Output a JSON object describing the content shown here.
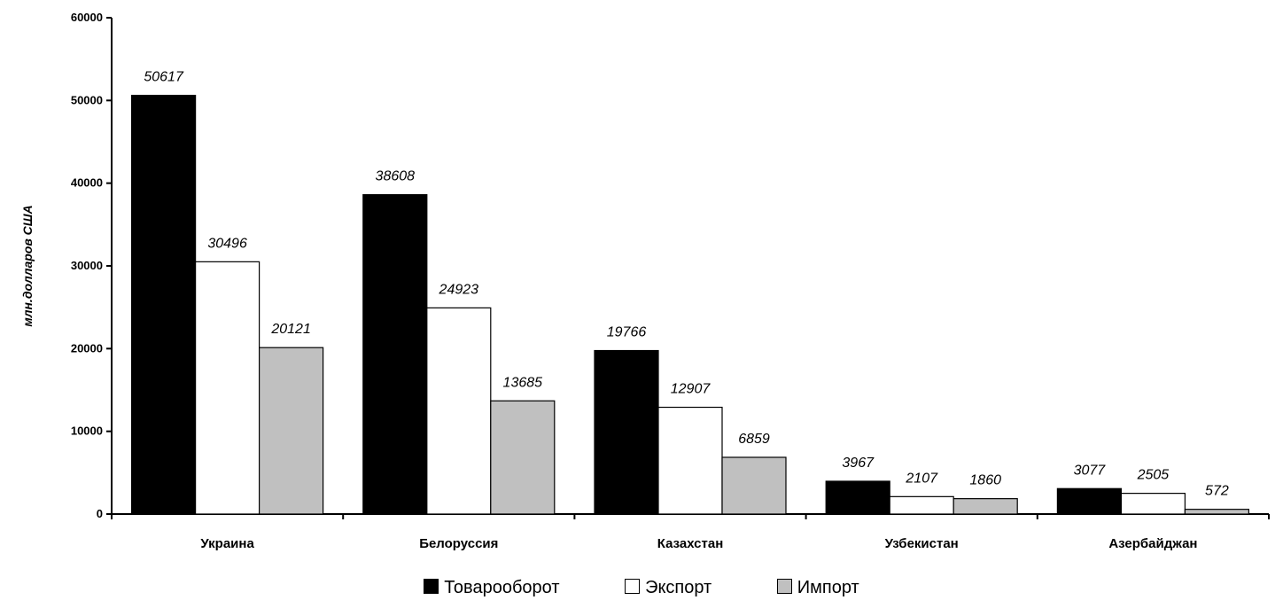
{
  "chart_data": {
    "type": "bar",
    "ylabel": "млн.долларов США",
    "xlabel": "",
    "ylim": [
      0,
      60000
    ],
    "yticks": [
      0,
      10000,
      20000,
      30000,
      40000,
      50000,
      60000
    ],
    "ytick_labels": [
      "0",
      "10000",
      "20000",
      "30000",
      "40000",
      "50000",
      "60000"
    ],
    "categories": [
      "Украина",
      "Белоруссия",
      "Казахстан",
      "Узбекистан",
      "Азербайджан"
    ],
    "series": [
      {
        "name": "Товарооборот",
        "color": "#000000",
        "values": [
          50617,
          38608,
          19766,
          3967,
          3077
        ]
      },
      {
        "name": "Экспорт",
        "color": "#ffffff",
        "values": [
          30496,
          24923,
          12907,
          2107,
          2505
        ]
      },
      {
        "name": "Импорт",
        "color": "#c0c0c0",
        "values": [
          20121,
          13685,
          6859,
          1860,
          572
        ]
      }
    ],
    "legend_position": "bottom",
    "grid": false
  }
}
